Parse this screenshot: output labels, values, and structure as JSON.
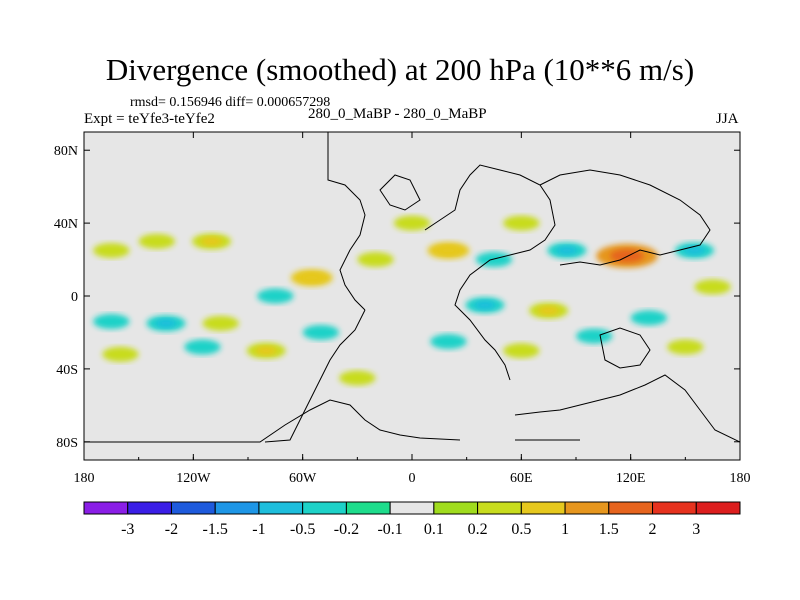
{
  "chart_data": {
    "type": "heatmap",
    "title": "Divergence (smoothed) at 200 hPa (10**6 m/s)",
    "rmsd_text": "rmsd= 0.156946 diff= 0.000657298",
    "subtitle": "280_0_MaBP - 280_0_MaBP",
    "expt_text": "Expt = teYfe3-teYfe2",
    "season": "JJA",
    "x_ticks": [
      {
        "value": -180,
        "label": "180"
      },
      {
        "value": -120,
        "label": "120W"
      },
      {
        "value": -60,
        "label": "60W"
      },
      {
        "value": 0,
        "label": "0"
      },
      {
        "value": 60,
        "label": "60E"
      },
      {
        "value": 120,
        "label": "120E"
      },
      {
        "value": 180,
        "label": "180"
      }
    ],
    "y_ticks": [
      {
        "value": 80,
        "label": "80N"
      },
      {
        "value": 40,
        "label": "40N"
      },
      {
        "value": 0,
        "label": "0"
      },
      {
        "value": -40,
        "label": "40S"
      },
      {
        "value": -80,
        "label": "80S"
      }
    ],
    "xlim": [
      -180,
      180
    ],
    "ylim": [
      -90,
      90
    ],
    "colorbar": {
      "levels": [
        "-3",
        "-2",
        "-1.5",
        "-1",
        "-0.5",
        "-0.2",
        "-0.1",
        "0.1",
        "0.2",
        "0.5",
        "1",
        "1.5",
        "2",
        "3"
      ],
      "colors": [
        "#8a1ee6",
        "#3a1ee6",
        "#1e5adc",
        "#1e96e6",
        "#1ebedc",
        "#1ed2c8",
        "#1edc8c",
        "#e6e6e6",
        "#a0dc1e",
        "#c8dc1e",
        "#e6c81e",
        "#e6961e",
        "#e6641e",
        "#e6321e",
        "#dc1e1e"
      ]
    },
    "background_color": "#e6e6e6",
    "anomalies": [
      {
        "lon": -165,
        "lat": 25,
        "value": 0.3
      },
      {
        "lon": -140,
        "lat": 30,
        "value": 0.3
      },
      {
        "lon": -110,
        "lat": 30,
        "value": 0.4
      },
      {
        "lon": -165,
        "lat": -14,
        "value": -0.3
      },
      {
        "lon": -135,
        "lat": -15,
        "value": -0.4
      },
      {
        "lon": -105,
        "lat": -15,
        "value": 0.3
      },
      {
        "lon": -160,
        "lat": -32,
        "value": 0.3
      },
      {
        "lon": -115,
        "lat": -28,
        "value": -0.3
      },
      {
        "lon": -80,
        "lat": -30,
        "value": 0.4
      },
      {
        "lon": -30,
        "lat": -45,
        "value": 0.3
      },
      {
        "lon": -75,
        "lat": 0,
        "value": -0.3
      },
      {
        "lon": -55,
        "lat": 10,
        "value": 0.5
      },
      {
        "lon": -50,
        "lat": -20,
        "value": -0.3
      },
      {
        "lon": -20,
        "lat": 20,
        "value": 0.3
      },
      {
        "lon": 0,
        "lat": 40,
        "value": 0.3
      },
      {
        "lon": 20,
        "lat": 25,
        "value": 0.5
      },
      {
        "lon": 45,
        "lat": 20,
        "value": -0.3
      },
      {
        "lon": 60,
        "lat": 40,
        "value": 0.3
      },
      {
        "lon": 85,
        "lat": 25,
        "value": -0.4
      },
      {
        "lon": 118,
        "lat": 22,
        "value": 1.2
      },
      {
        "lon": 155,
        "lat": 25,
        "value": -0.4
      },
      {
        "lon": 165,
        "lat": 5,
        "value": 0.3
      },
      {
        "lon": 40,
        "lat": -5,
        "value": -0.4
      },
      {
        "lon": 75,
        "lat": -8,
        "value": 0.4
      },
      {
        "lon": 100,
        "lat": -22,
        "value": -0.3
      },
      {
        "lon": 130,
        "lat": -12,
        "value": -0.3
      },
      {
        "lon": 150,
        "lat": -28,
        "value": 0.3
      },
      {
        "lon": 20,
        "lat": -25,
        "value": -0.3
      },
      {
        "lon": 60,
        "lat": -30,
        "value": 0.3
      }
    ]
  }
}
